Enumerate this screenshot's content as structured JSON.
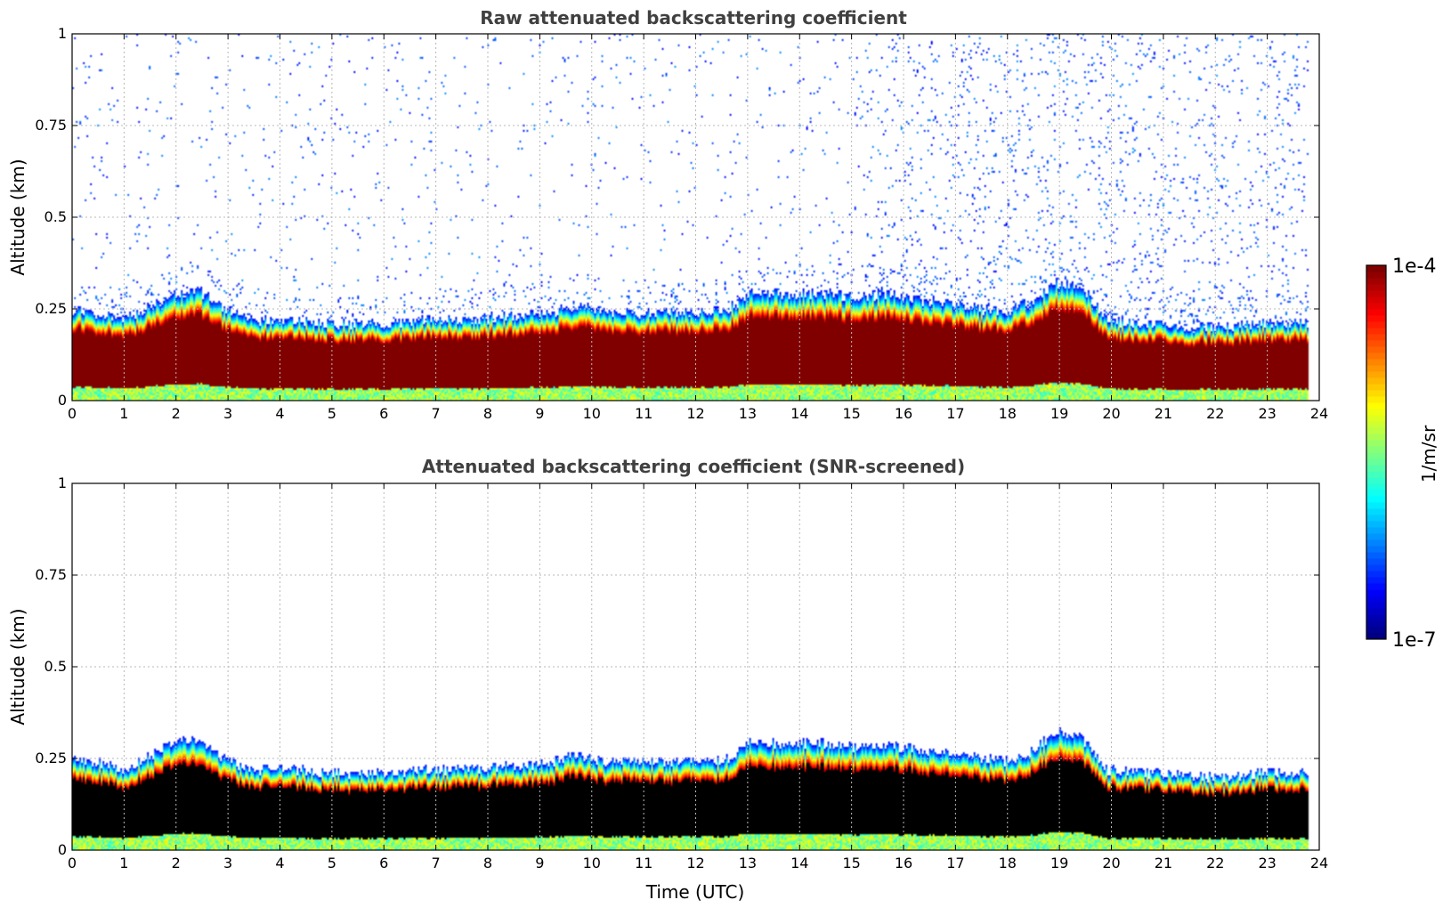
{
  "chart_data": [
    {
      "type": "heatmap",
      "title": "Raw attenuated backscattering coefficient",
      "xlabel": "",
      "ylabel": "Altitude (km)",
      "xlim": [
        0,
        24
      ],
      "ylim": [
        0,
        1
      ],
      "xticks": [
        "0",
        "1",
        "2",
        "3",
        "4",
        "5",
        "6",
        "7",
        "8",
        "9",
        "10",
        "11",
        "12",
        "13",
        "14",
        "15",
        "16",
        "17",
        "18",
        "19",
        "20",
        "21",
        "22",
        "23",
        "24"
      ],
      "yticks": [
        "0",
        "0.25",
        "0.5",
        "0.75",
        "1"
      ],
      "grid": true,
      "variable": "attenuated backscatter",
      "data_end_time_utc": 23.8,
      "layer_top_km": [
        0.25,
        0.24,
        0.22,
        0.25,
        0.29,
        0.3,
        0.25,
        0.22,
        0.22,
        0.22,
        0.21,
        0.21,
        0.21,
        0.21,
        0.22,
        0.22,
        0.22,
        0.23,
        0.23,
        0.24,
        0.26,
        0.24,
        0.24,
        0.24,
        0.24,
        0.24,
        0.25,
        0.3,
        0.29,
        0.29,
        0.29,
        0.28,
        0.29,
        0.28,
        0.27,
        0.26,
        0.25,
        0.24,
        0.27,
        0.32,
        0.31,
        0.22,
        0.21,
        0.21,
        0.2,
        0.2,
        0.2,
        0.21,
        0.21,
        0.21
      ],
      "noise": "high"
    },
    {
      "type": "heatmap",
      "title": "Attenuated backscattering coefficient (SNR-screened)",
      "xlabel": "Time (UTC)",
      "ylabel": "Altitude (km)",
      "xlim": [
        0,
        24
      ],
      "ylim": [
        0,
        1
      ],
      "xticks": [
        "0",
        "1",
        "2",
        "3",
        "4",
        "5",
        "6",
        "7",
        "8",
        "9",
        "10",
        "11",
        "12",
        "13",
        "14",
        "15",
        "16",
        "17",
        "18",
        "19",
        "20",
        "21",
        "22",
        "23",
        "24"
      ],
      "yticks": [
        "0",
        "0.25",
        "0.5",
        "0.75",
        "1"
      ],
      "grid": true,
      "variable": "attenuated backscatter (SNR-screened)",
      "data_end_time_utc": 23.8,
      "layer_top_km": [
        0.25,
        0.24,
        0.22,
        0.25,
        0.29,
        0.3,
        0.25,
        0.22,
        0.22,
        0.22,
        0.21,
        0.21,
        0.21,
        0.21,
        0.22,
        0.22,
        0.22,
        0.23,
        0.23,
        0.24,
        0.26,
        0.24,
        0.24,
        0.24,
        0.24,
        0.24,
        0.25,
        0.3,
        0.29,
        0.29,
        0.29,
        0.28,
        0.29,
        0.28,
        0.27,
        0.26,
        0.25,
        0.24,
        0.27,
        0.32,
        0.31,
        0.22,
        0.21,
        0.21,
        0.2,
        0.2,
        0.2,
        0.21,
        0.21,
        0.21
      ],
      "noise": "low"
    }
  ],
  "colorbar": {
    "label": "1/m/sr",
    "max_label": "1e-4",
    "min_label": "1e-7",
    "scale": "log",
    "colormap": "jet"
  }
}
